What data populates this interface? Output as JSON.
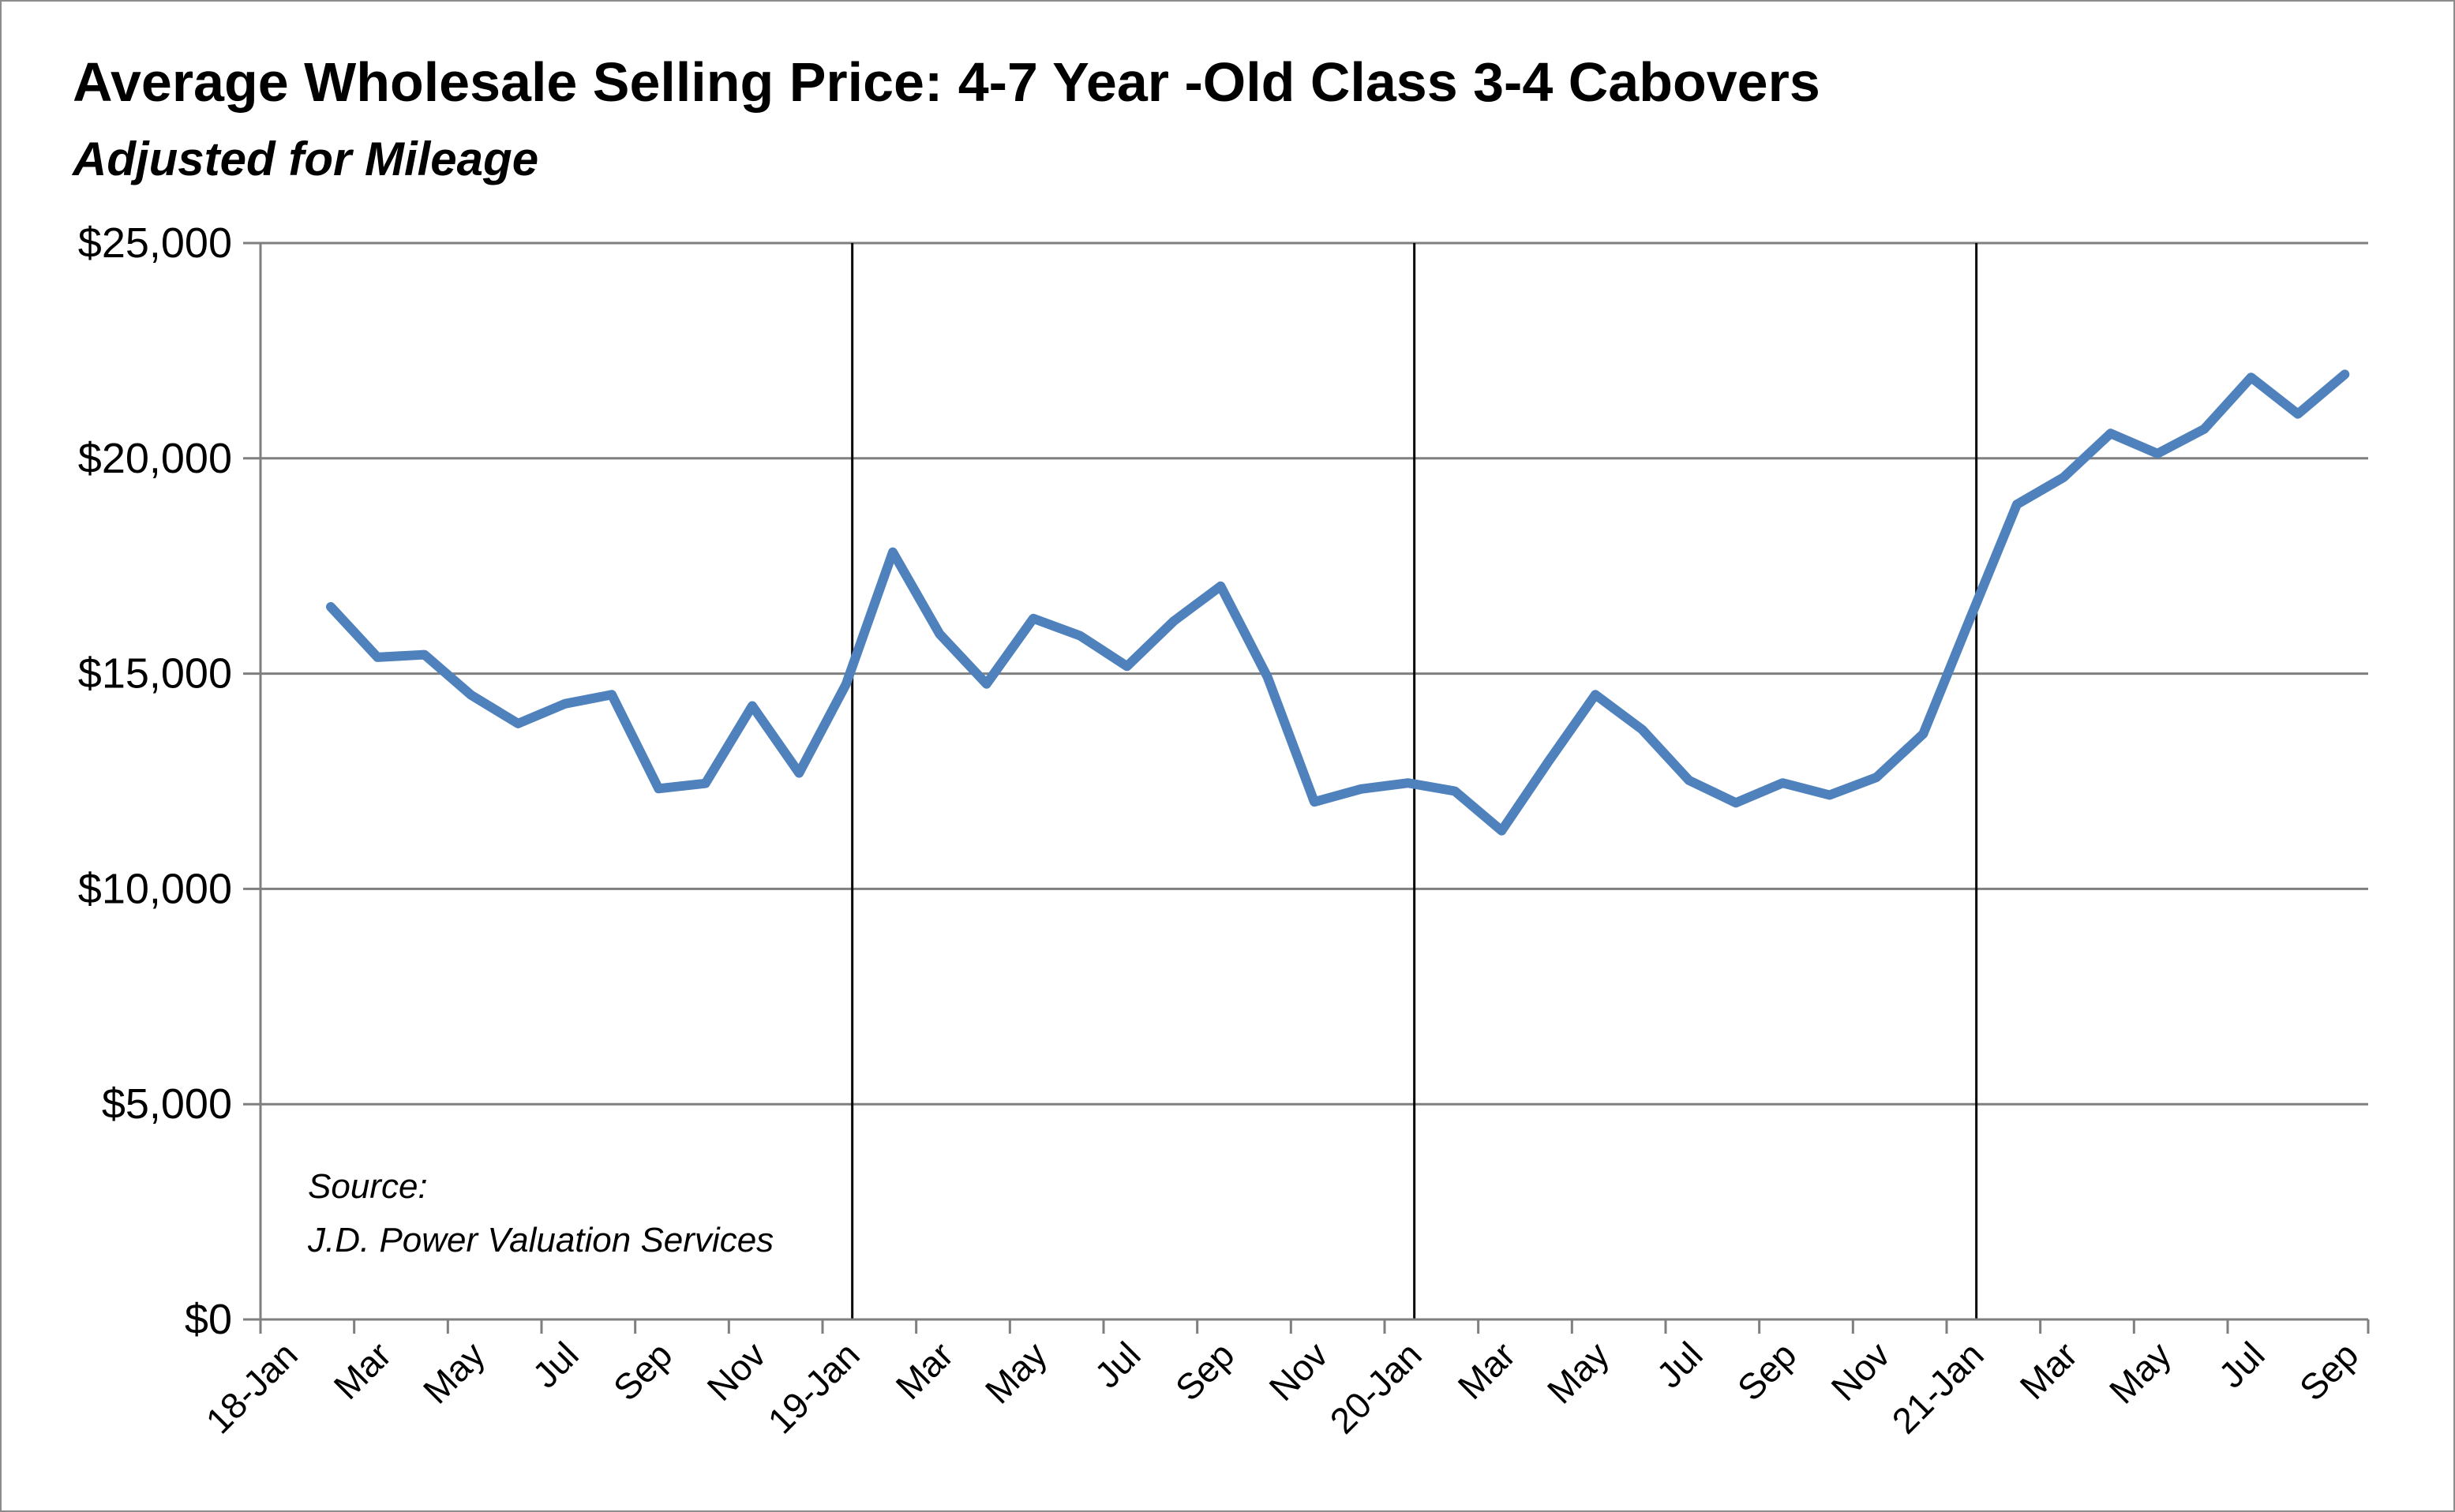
{
  "chart_data": {
    "type": "line",
    "title": "Average  Wholesale Selling Price: 4-7 Year -Old Class 3-4 Cabovers",
    "subtitle": "Adjusted  for Mileage",
    "xlabel": "",
    "ylabel": "",
    "ylim": [
      0,
      25000
    ],
    "yticks": [
      0,
      5000,
      10000,
      15000,
      20000,
      25000
    ],
    "ytick_labels": [
      "$0",
      "$5,000",
      "$10,000",
      "$15,000",
      "$20,000",
      "$25,000"
    ],
    "x_tick_labels": [
      "18-Jan",
      "Mar",
      "May",
      "Jul",
      "Sep",
      "Nov",
      "19-Jan",
      "Mar",
      "May",
      "Jul",
      "Sep",
      "Nov",
      "20-Jan",
      "Mar",
      "May",
      "Jul",
      "Sep",
      "Nov",
      "21-Jan",
      "Mar",
      "May",
      "Jul",
      "Sep"
    ],
    "grid": true,
    "year_separators": [
      "19-Jan",
      "20-Jan",
      "21-Jan"
    ],
    "colors": {
      "series": "#4f81bd",
      "grid": "#7f7f7f",
      "separator": "#000000"
    },
    "annotation": [
      "Source:",
      "J.D. Power Valuation Services"
    ],
    "series": [
      {
        "name": "",
        "values": [
          16550,
          15380,
          15440,
          14500,
          13840,
          14300,
          14510,
          12330,
          12450,
          14250,
          12690,
          14750,
          17820,
          15920,
          14760,
          16280,
          15880,
          15170,
          16220,
          17030,
          14920,
          12020,
          12320,
          12460,
          12270,
          11350,
          12960,
          14510,
          13700,
          12520,
          12000,
          12460,
          12180,
          12590,
          13600,
          16280,
          18930,
          19560,
          20580,
          20110,
          20680,
          21880,
          21030,
          21950
        ]
      }
    ]
  }
}
